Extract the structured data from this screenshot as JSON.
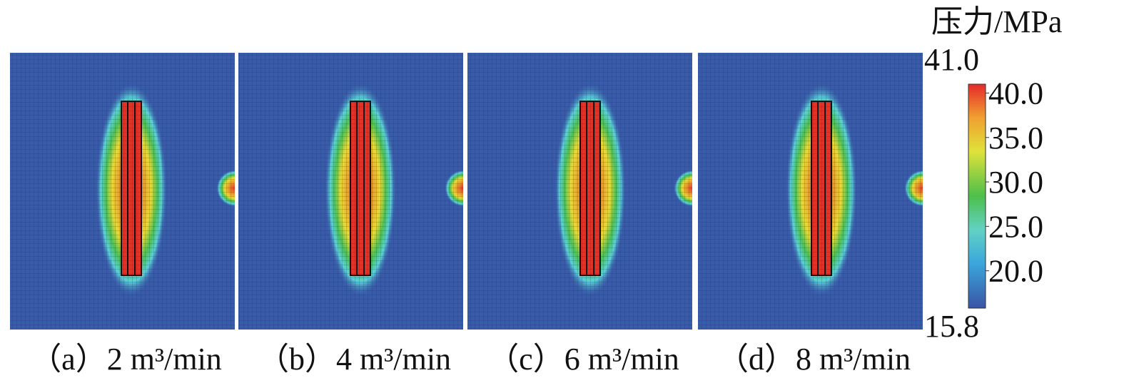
{
  "panels": [
    {
      "caption": "（a）2 m³/min"
    },
    {
      "caption": "（b）4 m³/min"
    },
    {
      "caption": "（c）6 m³/min"
    },
    {
      "caption": "（d）8 m³/min"
    }
  ],
  "colorbar": {
    "title": "压力/MPa",
    "max": {
      "value": 41.0,
      "label": "41.0"
    },
    "min": {
      "value": 15.8,
      "label": "15.8"
    },
    "ticks": [
      {
        "value": 40,
        "label": "40.0"
      },
      {
        "value": 35,
        "label": "35.0"
      },
      {
        "value": 30,
        "label": "30.0"
      },
      {
        "value": 25,
        "label": "25.0"
      },
      {
        "value": 20,
        "label": "20.0"
      }
    ]
  }
}
